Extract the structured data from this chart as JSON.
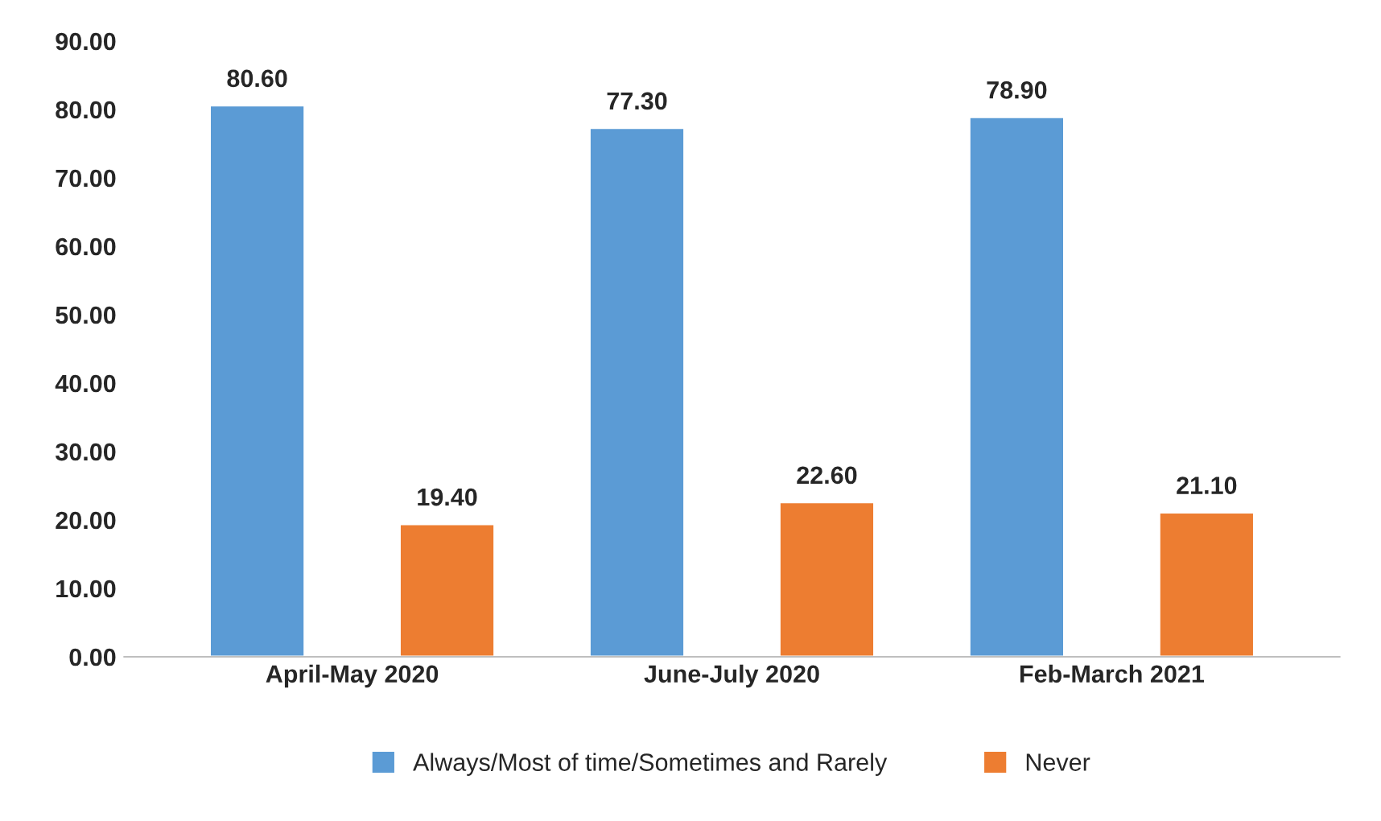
{
  "chart_data": {
    "type": "bar",
    "categories": [
      "April-May 2020",
      "June-July 2020",
      "Feb-March 2021"
    ],
    "series": [
      {
        "name": "Always/Most of time/Sometimes and Rarely",
        "color": "#5b9bd5",
        "values": [
          80.6,
          77.3,
          78.9
        ],
        "value_labels": [
          "80.60",
          "77.30",
          "78.90"
        ]
      },
      {
        "name": "Never",
        "color": "#ed7d31",
        "values": [
          19.4,
          22.6,
          21.1
        ],
        "value_labels": [
          "19.40",
          "22.60",
          "21.10"
        ]
      }
    ],
    "ylim": [
      0,
      90
    ],
    "yticks": [
      {
        "value": 0,
        "label": "0.00"
      },
      {
        "value": 10,
        "label": "10.00"
      },
      {
        "value": 20,
        "label": "20.00"
      },
      {
        "value": 30,
        "label": "30.00"
      },
      {
        "value": 40,
        "label": "40.00"
      },
      {
        "value": 50,
        "label": "50.00"
      },
      {
        "value": 60,
        "label": "60.00"
      },
      {
        "value": 70,
        "label": "70.00"
      },
      {
        "value": 80,
        "label": "80.00"
      },
      {
        "value": 90,
        "label": "90.00"
      }
    ],
    "grid": false,
    "legend": "bottom"
  }
}
